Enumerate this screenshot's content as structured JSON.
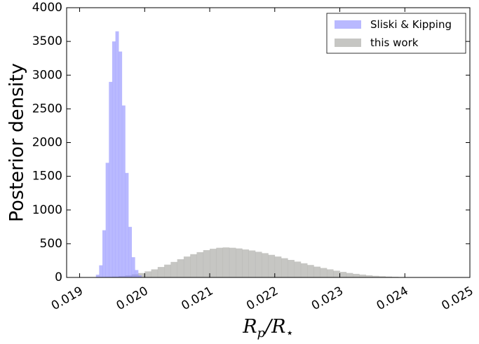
{
  "chart_data": {
    "type": "histogram",
    "title": "",
    "xlabel": {
      "main": "R",
      "sub1": "p",
      "slash": "/",
      "main2": "R",
      "sub2": "⋆"
    },
    "ylabel": "Posterior density",
    "xlim": [
      0.0188,
      0.025
    ],
    "ylim": [
      0,
      4000
    ],
    "xticks": [
      "0.019",
      "0.020",
      "0.021",
      "0.022",
      "0.023",
      "0.024",
      "0.025"
    ],
    "yticks": [
      "0",
      "500",
      "1000",
      "1500",
      "2000",
      "2500",
      "3000",
      "3500",
      "4000"
    ],
    "grid": false,
    "legend_position": "top-right",
    "series": [
      {
        "name": "Sliski & Kipping",
        "color": "#8b8bff",
        "alpha": 0.6,
        "bin_width": 5e-05,
        "bins": [
          [
            0.01925,
            40
          ],
          [
            0.0193,
            180
          ],
          [
            0.01935,
            700
          ],
          [
            0.0194,
            1700
          ],
          [
            0.01945,
            2900
          ],
          [
            0.0195,
            3500
          ],
          [
            0.01955,
            3650
          ],
          [
            0.0196,
            3350
          ],
          [
            0.01965,
            2550
          ],
          [
            0.0197,
            1550
          ],
          [
            0.01975,
            750
          ],
          [
            0.0198,
            300
          ],
          [
            0.01985,
            110
          ],
          [
            0.0199,
            30
          ]
        ]
      },
      {
        "name": "this work",
        "color": "#a0a09b",
        "alpha": 0.6,
        "bin_width": 0.0001,
        "bins": [
          [
            0.0193,
            4
          ],
          [
            0.0194,
            7
          ],
          [
            0.0195,
            12
          ],
          [
            0.0196,
            20
          ],
          [
            0.0197,
            30
          ],
          [
            0.0198,
            45
          ],
          [
            0.0199,
            65
          ],
          [
            0.02,
            90
          ],
          [
            0.0201,
            120
          ],
          [
            0.0202,
            155
          ],
          [
            0.0203,
            190
          ],
          [
            0.0204,
            230
          ],
          [
            0.0205,
            270
          ],
          [
            0.0206,
            310
          ],
          [
            0.0207,
            345
          ],
          [
            0.0208,
            375
          ],
          [
            0.0209,
            405
          ],
          [
            0.021,
            425
          ],
          [
            0.0211,
            440
          ],
          [
            0.0212,
            445
          ],
          [
            0.0213,
            440
          ],
          [
            0.0214,
            430
          ],
          [
            0.0215,
            415
          ],
          [
            0.0216,
            400
          ],
          [
            0.0217,
            380
          ],
          [
            0.0218,
            360
          ],
          [
            0.0219,
            335
          ],
          [
            0.022,
            310
          ],
          [
            0.0221,
            285
          ],
          [
            0.0222,
            260
          ],
          [
            0.0223,
            235
          ],
          [
            0.0224,
            210
          ],
          [
            0.0225,
            185
          ],
          [
            0.0226,
            160
          ],
          [
            0.0227,
            140
          ],
          [
            0.0228,
            120
          ],
          [
            0.0229,
            100
          ],
          [
            0.023,
            82
          ],
          [
            0.0231,
            66
          ],
          [
            0.0232,
            53
          ],
          [
            0.0233,
            42
          ],
          [
            0.0234,
            32
          ],
          [
            0.0235,
            24
          ],
          [
            0.0236,
            18
          ],
          [
            0.0237,
            13
          ],
          [
            0.0238,
            9
          ],
          [
            0.0239,
            6
          ],
          [
            0.024,
            4
          ],
          [
            0.0241,
            3
          ],
          [
            0.0242,
            2
          ],
          [
            0.0243,
            1
          ]
        ]
      }
    ]
  }
}
